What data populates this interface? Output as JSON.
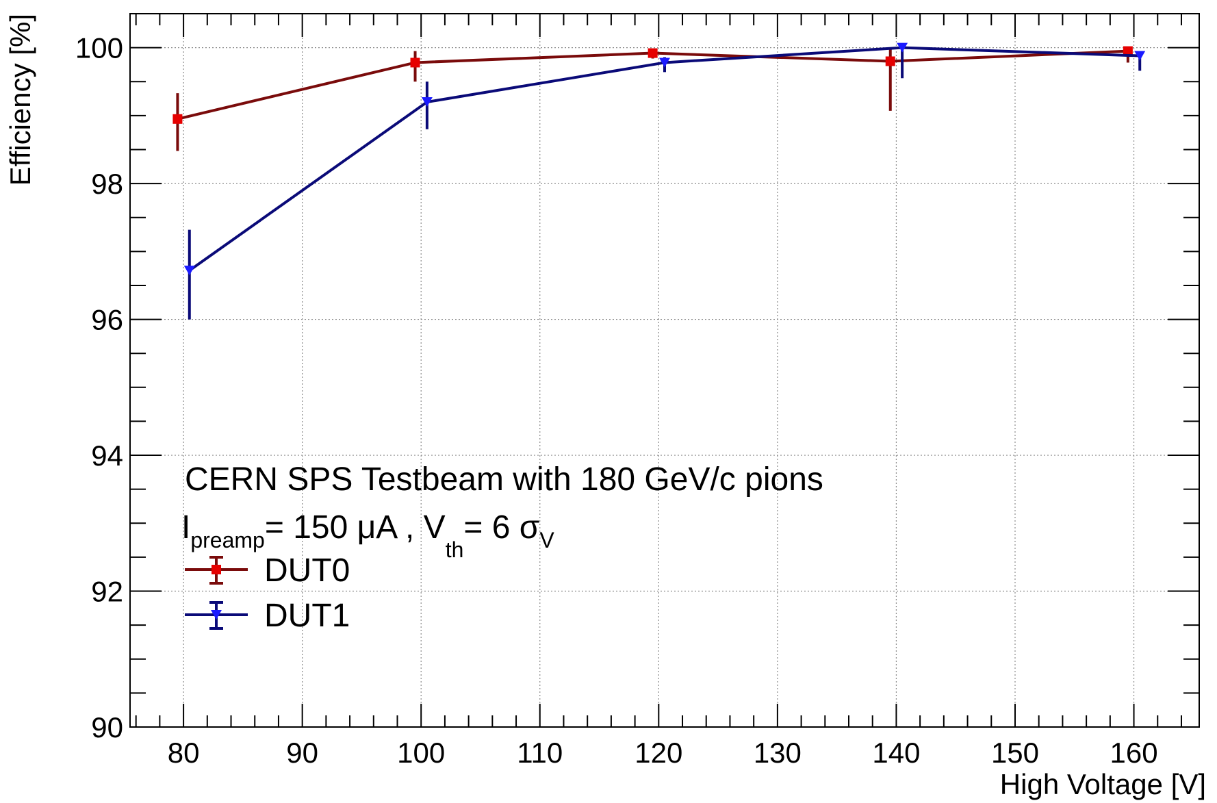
{
  "chart_data": {
    "type": "line",
    "xlabel": "High Voltage [V]",
    "ylabel": "Efficiency [%]",
    "xlim": [
      75.5,
      165.5
    ],
    "ylim": [
      90,
      100.5
    ],
    "xticks": [
      80,
      90,
      100,
      110,
      120,
      130,
      140,
      150,
      160
    ],
    "yticks": [
      90,
      92,
      94,
      96,
      98,
      100
    ],
    "grid": true,
    "legend_position": "bottom-left",
    "annotations": {
      "line1": "CERN SPS Testbeam with 180 GeV/c pions",
      "line2": {
        "I": "I",
        "I_sub": "preamp",
        "eq1": "= 150 μA , V",
        "V_sub": "th",
        "eq2": "= 6 σ",
        "sigma_sub": "V"
      }
    },
    "series": [
      {
        "name": "DUT0",
        "line_color": "#7a0b0b",
        "marker_color": "#e60000",
        "marker": "square",
        "x": [
          79.5,
          99.5,
          119.5,
          139.5,
          159.5
        ],
        "y": [
          98.95,
          99.78,
          99.92,
          99.8,
          99.95
        ],
        "err_low": [
          0.47,
          0.28,
          0.08,
          0.73,
          0.17
        ],
        "err_high": [
          0.38,
          0.17,
          0.05,
          0.18,
          0.04
        ]
      },
      {
        "name": "DUT1",
        "line_color": "#0a0a78",
        "marker_color": "#1a1aff",
        "marker": "triangle-down",
        "x": [
          80.5,
          100.5,
          120.5,
          140.5,
          160.5
        ],
        "y": [
          96.72,
          99.2,
          99.78,
          100.0,
          99.88
        ],
        "err_low": [
          0.72,
          0.4,
          0.14,
          0.45,
          0.22
        ],
        "err_high": [
          0.6,
          0.3,
          0.08,
          0.0,
          0.07
        ]
      }
    ]
  }
}
